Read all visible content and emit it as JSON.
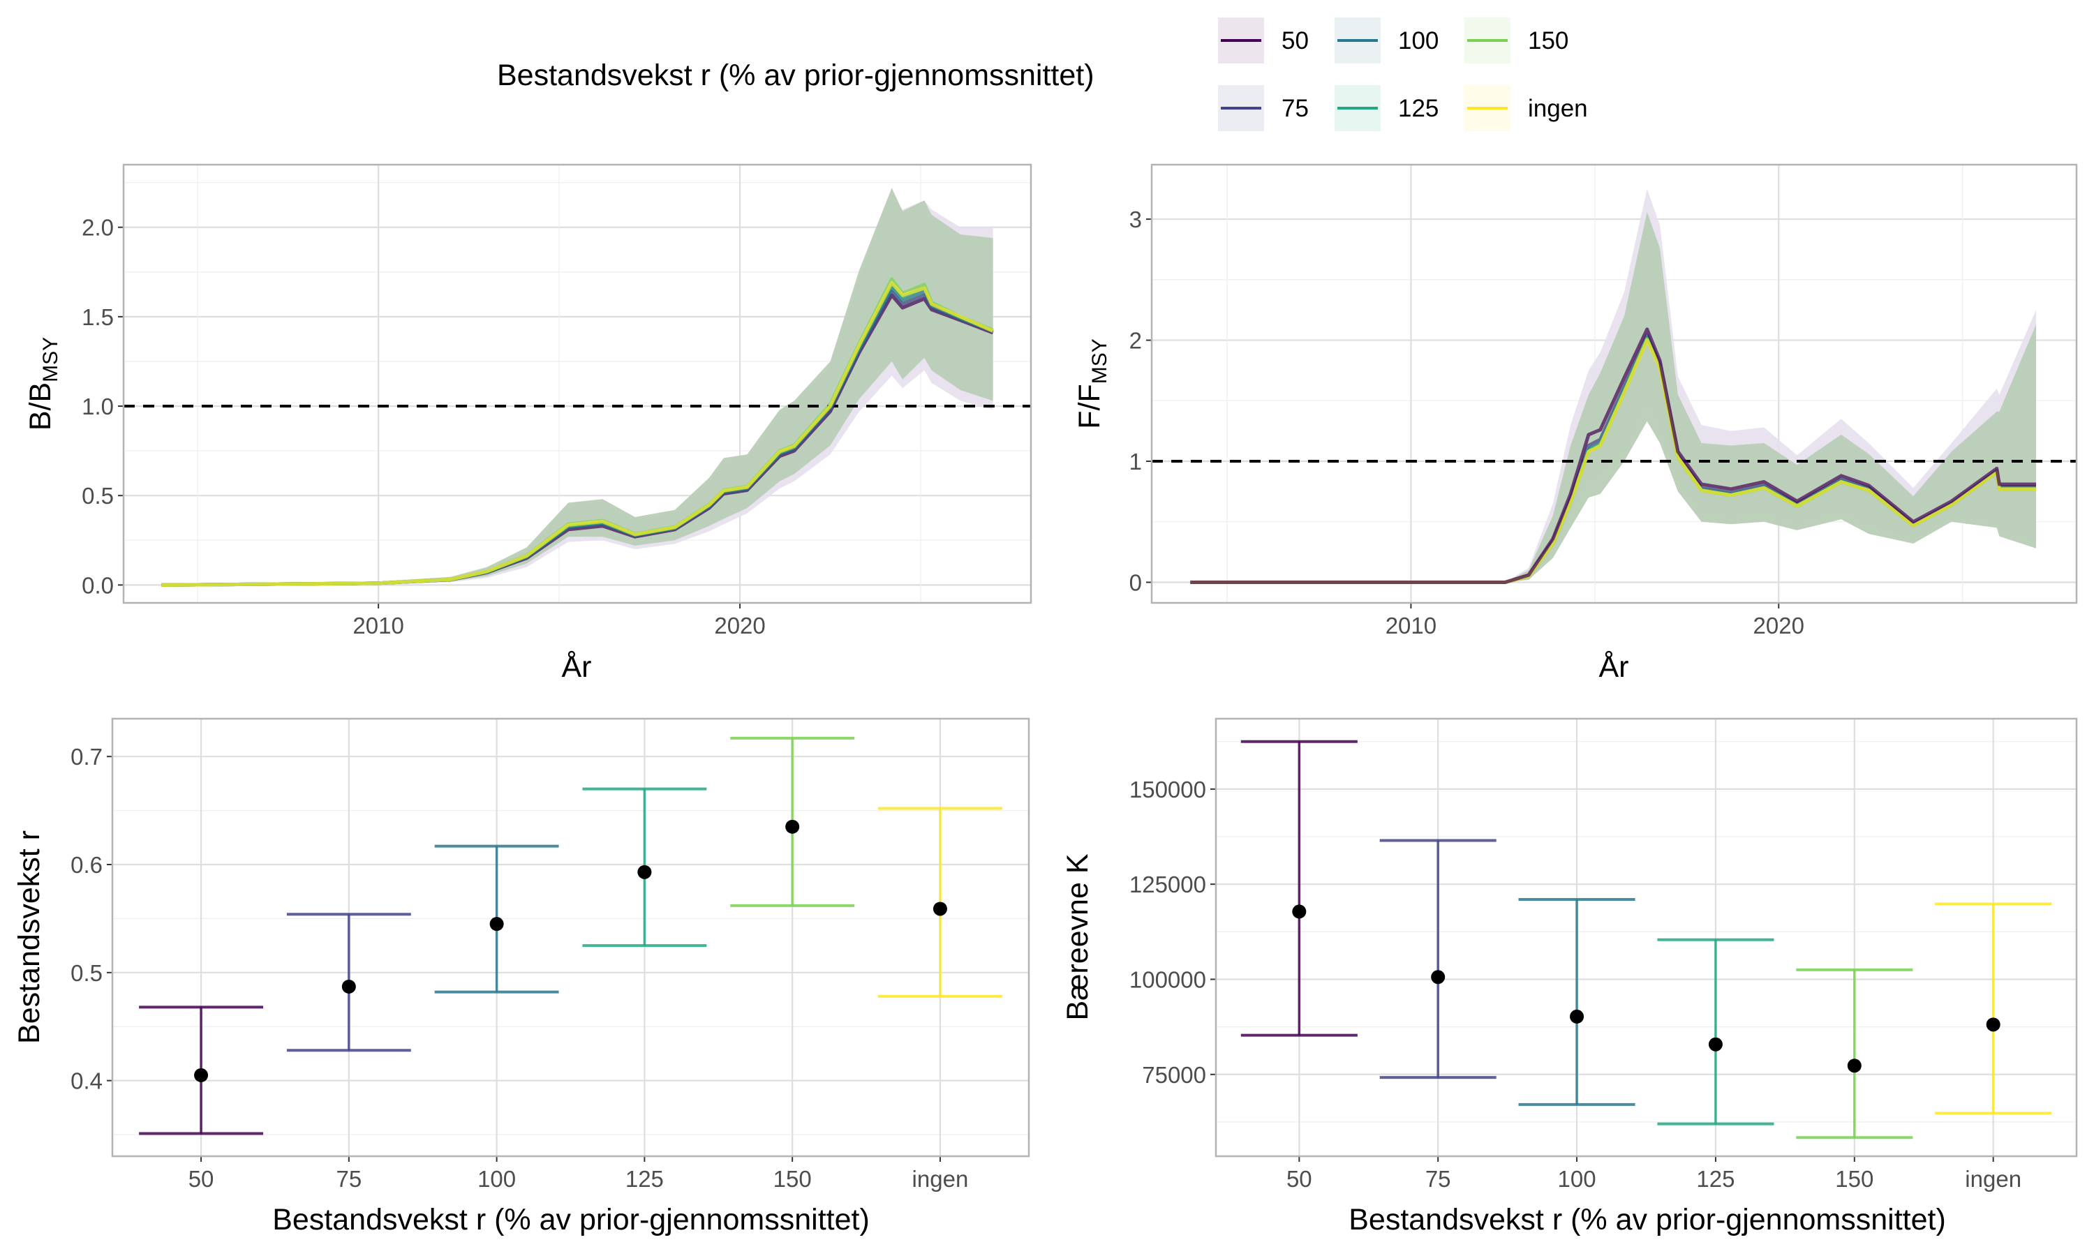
{
  "legend": {
    "title": "Bestandsvekst r (% av prior-gjennomssnittet)",
    "items": [
      {
        "label": "50",
        "color": "#440154"
      },
      {
        "label": "75",
        "color": "#414487"
      },
      {
        "label": "100",
        "color": "#2A788E"
      },
      {
        "label": "125",
        "color": "#22A884"
      },
      {
        "label": "150",
        "color": "#7AD151"
      },
      {
        "label": "ingen",
        "color": "#FDE725"
      }
    ]
  },
  "chart_data": [
    {
      "type": "line",
      "xlabel": "År",
      "ylabel": "B/B",
      "ylabel_sub": "MSY",
      "xlim": [
        2002.95,
        2028.05
      ],
      "ylim": [
        -0.1,
        2.35
      ],
      "xticks": [
        2010,
        2020
      ],
      "yticks": [
        0.0,
        0.5,
        1.0,
        1.5,
        2.0
      ],
      "ytick_labels": [
        "0.0",
        "0.5",
        "1.0",
        "1.5",
        "2.0"
      ],
      "grid": true,
      "reference_line": 1.0,
      "x": [
        2004,
        2010,
        2012,
        2013,
        2014.1,
        2015.25,
        2016.2,
        2017.1,
        2018.2,
        2019.15,
        2019.55,
        2020.2,
        2021.1,
        2021.5,
        2022.5,
        2023.3,
        2024.2,
        2024.5,
        2025.1,
        2025.3,
        2026.1,
        2027
      ],
      "bands": [
        {
          "series": "50",
          "color": "#440154",
          "lower": [
            0,
            0.004,
            0.015,
            0.04,
            0.1,
            0.24,
            0.25,
            0.2,
            0.23,
            0.3,
            0.34,
            0.4,
            0.54,
            0.58,
            0.73,
            0.97,
            1.17,
            1.1,
            1.2,
            1.13,
            1.03,
            0.98
          ],
          "upper": [
            0,
            0.02,
            0.04,
            0.09,
            0.2,
            0.43,
            0.46,
            0.36,
            0.4,
            0.57,
            0.68,
            0.7,
            0.95,
            1.0,
            1.22,
            1.72,
            2.18,
            2.1,
            2.15,
            2.1,
            2.0,
            2.0
          ]
        },
        {
          "series": "150",
          "color": "#7AD151",
          "lower": [
            0,
            0.005,
            0.02,
            0.05,
            0.12,
            0.27,
            0.27,
            0.22,
            0.25,
            0.33,
            0.37,
            0.43,
            0.58,
            0.62,
            0.78,
            1.04,
            1.25,
            1.15,
            1.27,
            1.2,
            1.09,
            1.03
          ],
          "upper": [
            0,
            0.02,
            0.045,
            0.1,
            0.21,
            0.46,
            0.48,
            0.38,
            0.42,
            0.6,
            0.71,
            0.73,
            0.98,
            1.03,
            1.25,
            1.76,
            2.22,
            2.09,
            2.15,
            2.07,
            1.96,
            1.94
          ]
        }
      ],
      "series": [
        {
          "name": "50",
          "values": [
            0,
            0.01,
            0.03,
            0.07,
            0.15,
            0.31,
            0.33,
            0.27,
            0.31,
            0.43,
            0.51,
            0.53,
            0.72,
            0.75,
            0.97,
            1.3,
            1.62,
            1.55,
            1.6,
            1.54,
            1.48,
            1.41
          ]
        },
        {
          "name": "75",
          "values": [
            0,
            0.01,
            0.03,
            0.07,
            0.155,
            0.32,
            0.34,
            0.275,
            0.315,
            0.435,
            0.515,
            0.535,
            0.73,
            0.76,
            0.98,
            1.31,
            1.64,
            1.57,
            1.62,
            1.55,
            1.485,
            1.415
          ]
        },
        {
          "name": "100",
          "values": [
            0,
            0.01,
            0.03,
            0.072,
            0.158,
            0.325,
            0.345,
            0.278,
            0.318,
            0.44,
            0.52,
            0.54,
            0.735,
            0.765,
            0.99,
            1.32,
            1.66,
            1.59,
            1.64,
            1.56,
            1.49,
            1.42
          ]
        },
        {
          "name": "125",
          "values": [
            0,
            0.01,
            0.031,
            0.074,
            0.16,
            0.33,
            0.35,
            0.28,
            0.32,
            0.445,
            0.525,
            0.545,
            0.74,
            0.77,
            1.0,
            1.33,
            1.68,
            1.61,
            1.66,
            1.57,
            1.495,
            1.42
          ]
        },
        {
          "name": "150",
          "values": [
            0,
            0.01,
            0.032,
            0.076,
            0.165,
            0.34,
            0.36,
            0.285,
            0.325,
            0.45,
            0.53,
            0.55,
            0.75,
            0.78,
            1.01,
            1.35,
            1.71,
            1.63,
            1.68,
            1.58,
            1.5,
            1.425
          ]
        },
        {
          "name": "ingen",
          "values": [
            0,
            0.01,
            0.031,
            0.075,
            0.162,
            0.335,
            0.355,
            0.282,
            0.322,
            0.447,
            0.527,
            0.547,
            0.745,
            0.775,
            1.0,
            1.34,
            1.69,
            1.62,
            1.66,
            1.57,
            1.5,
            1.42
          ]
        }
      ]
    },
    {
      "type": "line",
      "xlabel": "År",
      "ylabel": "F/F",
      "ylabel_sub": "MSY",
      "xlim": [
        2002.95,
        2028.1
      ],
      "ylim": [
        -0.17,
        3.45
      ],
      "xticks": [
        2010,
        2020
      ],
      "yticks": [
        0,
        1,
        2,
        3
      ],
      "ytick_labels": [
        "0",
        "1",
        "2",
        "3"
      ],
      "grid": true,
      "reference_line": 1.0,
      "x": [
        2004,
        2012.56,
        2013.2,
        2013.86,
        2014.34,
        2014.83,
        2015.15,
        2015.8,
        2016.42,
        2016.77,
        2017.26,
        2017.9,
        2018.7,
        2019.6,
        2020.5,
        2021.7,
        2022.45,
        2023.66,
        2024.7,
        2025.93,
        2026.0,
        2027
      ],
      "bands": [
        {
          "series": "50",
          "color": "#440154",
          "lower": [
            0,
            0,
            0.03,
            0.25,
            0.55,
            0.85,
            0.9,
            1.1,
            1.5,
            1.3,
            0.85,
            0.58,
            0.55,
            0.58,
            0.5,
            0.6,
            0.48,
            0.36,
            0.55,
            0.5,
            0.45,
            0.35
          ],
          "upper": [
            0,
            0,
            0.12,
            0.65,
            1.3,
            1.75,
            1.9,
            2.4,
            3.25,
            2.95,
            1.7,
            1.3,
            1.25,
            1.28,
            1.05,
            1.35,
            1.15,
            0.78,
            1.15,
            1.6,
            1.55,
            2.25
          ]
        },
        {
          "series": "150",
          "color": "#7AD151",
          "lower": [
            0,
            0,
            0.02,
            0.2,
            0.45,
            0.7,
            0.73,
            1.0,
            1.33,
            1.15,
            0.75,
            0.5,
            0.48,
            0.5,
            0.43,
            0.52,
            0.4,
            0.32,
            0.5,
            0.45,
            0.38,
            0.28
          ],
          "upper": [
            0,
            0,
            0.1,
            0.55,
            1.13,
            1.55,
            1.73,
            2.2,
            3.06,
            2.76,
            1.55,
            1.15,
            1.13,
            1.15,
            0.97,
            1.22,
            1.06,
            0.71,
            1.08,
            1.41,
            1.41,
            2.13
          ]
        }
      ],
      "series": [
        {
          "name": "75",
          "values": [
            0,
            0,
            0.055,
            0.34,
            0.69,
            1.13,
            1.18,
            1.62,
            2.04,
            1.8,
            1.05,
            0.78,
            0.74,
            0.8,
            0.65,
            0.85,
            0.78,
            0.48,
            0.65,
            0.92,
            0.79,
            0.79
          ]
        },
        {
          "name": "100",
          "values": [
            0,
            0,
            0.05,
            0.33,
            0.67,
            1.1,
            1.15,
            1.59,
            2.02,
            1.79,
            1.04,
            0.77,
            0.73,
            0.79,
            0.64,
            0.84,
            0.77,
            0.475,
            0.645,
            0.915,
            0.78,
            0.78
          ]
        },
        {
          "name": "125",
          "values": [
            0,
            0,
            0.05,
            0.32,
            0.66,
            1.09,
            1.14,
            1.58,
            2.01,
            1.78,
            1.03,
            0.76,
            0.72,
            0.78,
            0.63,
            0.83,
            0.76,
            0.47,
            0.64,
            0.91,
            0.77,
            0.77
          ]
        },
        {
          "name": "150",
          "values": [
            0,
            0,
            0.05,
            0.32,
            0.66,
            1.08,
            1.13,
            1.57,
            2.01,
            1.78,
            1.03,
            0.76,
            0.72,
            0.78,
            0.63,
            0.83,
            0.76,
            0.47,
            0.64,
            0.91,
            0.77,
            0.77
          ]
        },
        {
          "name": "ingen",
          "values": [
            0,
            0,
            0.05,
            0.32,
            0.66,
            1.08,
            1.13,
            1.57,
            2.0,
            1.77,
            1.03,
            0.76,
            0.72,
            0.78,
            0.63,
            0.83,
            0.76,
            0.47,
            0.64,
            0.91,
            0.77,
            0.77
          ]
        },
        {
          "name": "50",
          "values": [
            0,
            0,
            0.06,
            0.36,
            0.73,
            1.22,
            1.26,
            1.69,
            2.09,
            1.83,
            1.08,
            0.81,
            0.77,
            0.83,
            0.67,
            0.88,
            0.8,
            0.5,
            0.67,
            0.94,
            0.81,
            0.81
          ]
        }
      ]
    },
    {
      "type": "errorbar",
      "xlabel": "Bestandsvekst r (% av prior-gjennomssnittet)",
      "ylabel": "Bestandsvekst r",
      "categories": [
        "50",
        "75",
        "100",
        "125",
        "150",
        "ingen"
      ],
      "ylim": [
        0.33,
        0.735
      ],
      "yticks": [
        0.4,
        0.5,
        0.6,
        0.7
      ],
      "ytick_labels": [
        "0.4",
        "0.5",
        "0.6",
        "0.7"
      ],
      "grid": true,
      "values": [
        0.405,
        0.487,
        0.545,
        0.593,
        0.635,
        0.559
      ],
      "lower": [
        0.351,
        0.428,
        0.482,
        0.525,
        0.562,
        0.478
      ],
      "upper": [
        0.468,
        0.554,
        0.617,
        0.67,
        0.717,
        0.652
      ]
    },
    {
      "type": "errorbar",
      "xlabel": "Bestandsvekst r (% av prior-gjennomssnittet)",
      "ylabel": "Bæreevne K",
      "categories": [
        "50",
        "75",
        "100",
        "125",
        "150",
        "ingen"
      ],
      "ylim": [
        53500,
        168500
      ],
      "yticks": [
        75000,
        100000,
        125000,
        150000
      ],
      "ytick_labels": [
        "75000",
        "100000",
        "125000",
        "150000"
      ],
      "grid": true,
      "values": [
        117800,
        100600,
        90200,
        82900,
        77300,
        88100
      ],
      "lower": [
        85300,
        74200,
        67100,
        62000,
        58400,
        64800
      ],
      "upper": [
        162500,
        136500,
        121000,
        110400,
        102500,
        119800
      ]
    }
  ]
}
